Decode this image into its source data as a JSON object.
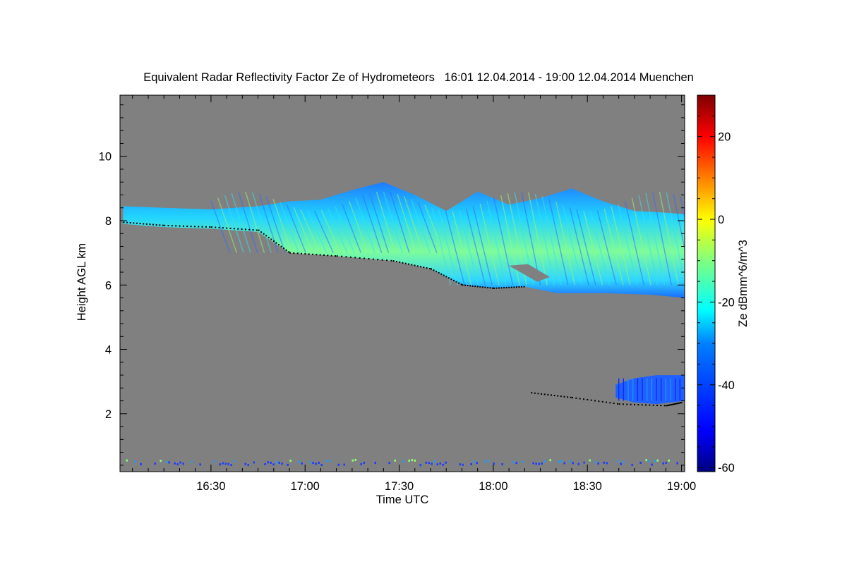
{
  "chart_data": {
    "type": "heatmap",
    "title": "Equivalent Radar Reflectivity Factor Ze of Hydrometeors   16:01 12.04.2014 - 19:00 12.04.2014 Muenchen",
    "xlabel": "Time UTC",
    "ylabel": "Height AGL km",
    "x_ticks": [
      "16:30",
      "17:00",
      "17:30",
      "18:00",
      "18:30",
      "19:00"
    ],
    "x_tick_values_min": [
      990,
      1020,
      1050,
      1080,
      1110,
      1140
    ],
    "xlim_min": [
      961,
      1141
    ],
    "y_ticks": [
      2,
      4,
      6,
      8,
      10
    ],
    "ylim": [
      0.2,
      11.9
    ],
    "colorbar": {
      "label": "Ze dBmm^6/m^3",
      "ticks": [
        -60,
        -40,
        -20,
        0,
        20
      ],
      "range": [
        -61,
        30
      ],
      "colors": [
        "#00007f",
        "#0000ff",
        "#007fff",
        "#00ffff",
        "#7fff7f",
        "#ffff00",
        "#ff7f00",
        "#ff0000",
        "#7f0000"
      ]
    },
    "background_color": "#808080",
    "cloud_base_color": "#000000",
    "upper_layer_base_km": [
      {
        "t": 962,
        "h": 7.95
      },
      {
        "t": 975,
        "h": 7.85
      },
      {
        "t": 990,
        "h": 7.8
      },
      {
        "t": 1005,
        "h": 7.7
      },
      {
        "t": 1015,
        "h": 7.0
      },
      {
        "t": 1030,
        "h": 6.9
      },
      {
        "t": 1048,
        "h": 6.75
      },
      {
        "t": 1060,
        "h": 6.5
      },
      {
        "t": 1070,
        "h": 6.0
      },
      {
        "t": 1080,
        "h": 5.9
      },
      {
        "t": 1090,
        "h": 5.95
      }
    ],
    "lower_layer_base_km": [
      {
        "t": 1092,
        "h": 2.65
      },
      {
        "t": 1105,
        "h": 2.5
      },
      {
        "t": 1120,
        "h": 2.3
      },
      {
        "t": 1135,
        "h": 2.25
      },
      {
        "t": 1140,
        "h": 2.35
      }
    ]
  }
}
